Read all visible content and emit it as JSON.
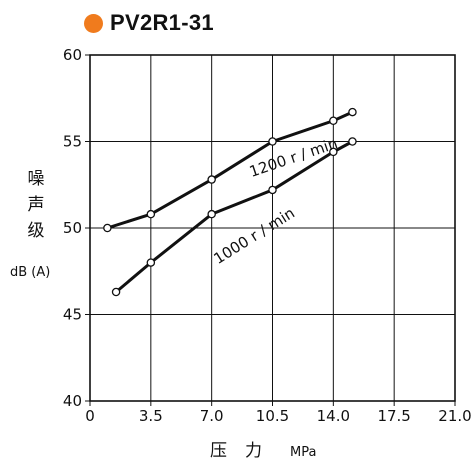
{
  "title": {
    "text": "PV2R1-31",
    "marker_color": "#f07b1d"
  },
  "y_label": {
    "chars": [
      "噪",
      "声",
      "级"
    ],
    "unit": "dB (A)"
  },
  "x_label": {
    "text": "压力",
    "unit": "MPa"
  },
  "chart_data": {
    "type": "line",
    "title": "PV2R1-31",
    "xlabel": "压力 MPa",
    "ylabel": "噪声级 dB (A)",
    "x_ticks": [
      "0",
      "3.5",
      "7.0",
      "10.5",
      "14.0",
      "17.5",
      "21.0"
    ],
    "y_ticks": [
      "40",
      "45",
      "50",
      "55",
      "60"
    ],
    "xlim": [
      0,
      21
    ],
    "ylim": [
      40,
      60
    ],
    "grid": true,
    "series": [
      {
        "name": "1200 r / min",
        "x": [
          1.0,
          3.5,
          7.0,
          10.5,
          14.0,
          15.1
        ],
        "y": [
          50.0,
          50.8,
          52.8,
          55.0,
          56.2,
          56.7
        ]
      },
      {
        "name": "1000 r / min",
        "x": [
          1.5,
          3.5,
          7.0,
          10.5,
          14.0,
          15.1
        ],
        "y": [
          46.3,
          48.0,
          50.8,
          52.2,
          54.4,
          55.0
        ]
      }
    ]
  }
}
